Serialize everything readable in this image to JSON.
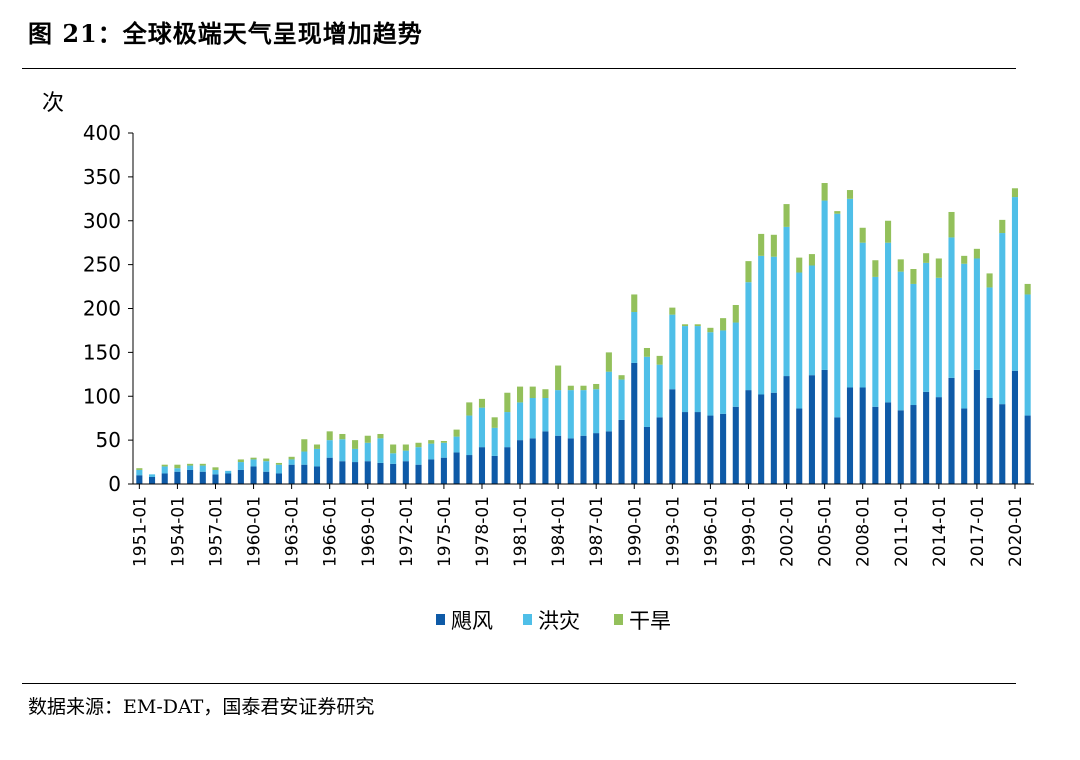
{
  "figure": {
    "title": "图 21：全球极端天气呈现增加趋势",
    "source": "数据来源：EM-DAT，国泰君安证券研究"
  },
  "chart_data": {
    "type": "bar",
    "stacked": true,
    "ylabel": "次",
    "ylim": [
      0,
      400
    ],
    "yticks": [
      0,
      50,
      100,
      150,
      200,
      250,
      300,
      350,
      400
    ],
    "x_tick_labels": [
      "1951-01",
      "1954-01",
      "1957-01",
      "1960-01",
      "1963-01",
      "1966-01",
      "1969-01",
      "1972-01",
      "1975-01",
      "1978-01",
      "1981-01",
      "1984-01",
      "1987-01",
      "1990-01",
      "1993-01",
      "1996-01",
      "1999-01",
      "2002-01",
      "2005-01",
      "2008-01",
      "2011-01",
      "2014-01",
      "2017-01",
      "2020-01"
    ],
    "x_tick_years": [
      1951,
      1954,
      1957,
      1960,
      1963,
      1966,
      1969,
      1972,
      1975,
      1978,
      1981,
      1984,
      1987,
      1990,
      1993,
      1996,
      1999,
      2002,
      2005,
      2008,
      2011,
      2014,
      2017,
      2020
    ],
    "years": [
      1951,
      1952,
      1953,
      1954,
      1955,
      1956,
      1957,
      1958,
      1959,
      1960,
      1961,
      1962,
      1963,
      1964,
      1965,
      1966,
      1967,
      1968,
      1969,
      1970,
      1971,
      1972,
      1973,
      1974,
      1975,
      1976,
      1977,
      1978,
      1979,
      1980,
      1981,
      1982,
      1983,
      1984,
      1985,
      1986,
      1987,
      1988,
      1989,
      1990,
      1991,
      1992,
      1993,
      1994,
      1995,
      1996,
      1997,
      1998,
      1999,
      2000,
      2001,
      2002,
      2003,
      2004,
      2005,
      2006,
      2007,
      2008,
      2009,
      2010,
      2011,
      2012,
      2013,
      2014,
      2015,
      2016,
      2017,
      2018,
      2019,
      2020,
      2021
    ],
    "legend_position": "bottom",
    "series": [
      {
        "name": "飓风",
        "color": "#0e5aa7",
        "values": [
          10,
          8,
          12,
          14,
          16,
          14,
          11,
          12,
          16,
          20,
          14,
          12,
          22,
          22,
          20,
          30,
          26,
          25,
          26,
          24,
          23,
          26,
          22,
          28,
          30,
          36,
          33,
          42,
          32,
          42,
          50,
          52,
          60,
          55,
          52,
          55,
          58,
          60,
          73,
          138,
          65,
          76,
          108,
          82,
          82,
          78,
          80,
          88,
          107,
          102,
          104,
          123,
          86,
          124,
          130,
          76,
          110,
          110,
          88,
          93,
          84,
          90,
          105,
          99,
          121,
          86,
          130,
          98,
          91,
          129,
          78
        ]
      },
      {
        "name": "洪灾",
        "color": "#4fbfe8",
        "values": [
          6,
          3,
          8,
          4,
          5,
          7,
          5,
          3,
          9,
          8,
          12,
          10,
          6,
          15,
          20,
          20,
          25,
          15,
          21,
          28,
          12,
          12,
          20,
          18,
          17,
          18,
          45,
          45,
          32,
          40,
          43,
          46,
          38,
          52,
          55,
          52,
          50,
          68,
          46,
          58,
          80,
          60,
          85,
          98,
          98,
          95,
          95,
          96,
          123,
          158,
          155,
          170,
          155,
          125,
          193,
          232,
          215,
          165,
          148,
          182,
          158,
          138,
          147,
          136,
          160,
          165,
          127,
          126,
          195,
          198,
          138
        ]
      },
      {
        "name": "干旱",
        "color": "#93c05b",
        "values": [
          2,
          0,
          2,
          4,
          2,
          2,
          3,
          0,
          3,
          2,
          3,
          2,
          3,
          14,
          5,
          10,
          6,
          10,
          8,
          5,
          10,
          7,
          5,
          4,
          2,
          8,
          15,
          10,
          12,
          22,
          18,
          13,
          10,
          28,
          5,
          5,
          6,
          22,
          5,
          20,
          10,
          10,
          8,
          2,
          2,
          5,
          14,
          20,
          24,
          25,
          25,
          26,
          17,
          13,
          20,
          3,
          10,
          17,
          19,
          25,
          14,
          17,
          11,
          22,
          29,
          9,
          11,
          16,
          15,
          10,
          12
        ]
      }
    ]
  }
}
